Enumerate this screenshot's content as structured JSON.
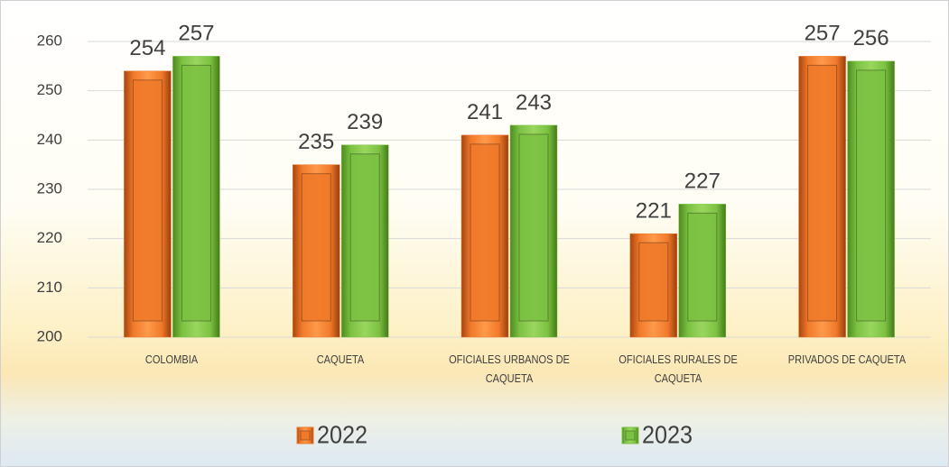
{
  "chart_data": {
    "type": "bar",
    "categories": [
      "COLOMBIA",
      "CAQUETA",
      "OFICIALES URBANOS DE CAQUETA",
      "OFICIALES RURALES DE CAQUETA",
      "PRIVADOS DE CAQUETA"
    ],
    "series": [
      {
        "name": "2022",
        "color": "#f07a2a",
        "values": [
          254,
          235,
          241,
          221,
          257
        ]
      },
      {
        "name": "2023",
        "color": "#7cc242",
        "values": [
          257,
          239,
          243,
          227,
          256
        ]
      }
    ],
    "ylim": [
      200,
      260
    ],
    "yticks": [
      200,
      210,
      220,
      230,
      240,
      250,
      260
    ],
    "grid": true,
    "legend": "bottom"
  }
}
